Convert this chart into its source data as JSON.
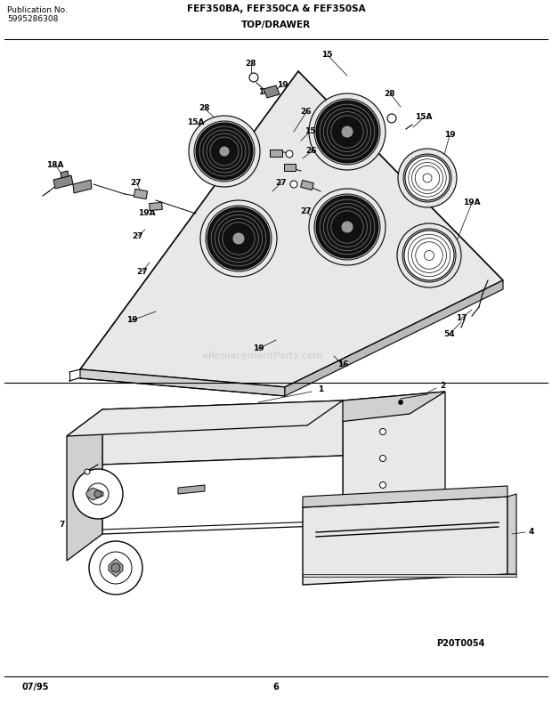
{
  "title": "FEF350BA, FEF350CA & FEF350SA",
  "subtitle": "TOP/DRAWER",
  "pub_no_label": "Publication No.",
  "pub_no": "5995286308",
  "date": "07/95",
  "page": "6",
  "watermark": "eReplacementParts.com",
  "diagram_ref": "P20T0054",
  "bg": "#ffffff",
  "lc": "#000000",
  "gray1": "#e8e8e8",
  "gray2": "#d0d0d0",
  "gray3": "#bbbbbb",
  "dark": "#111111",
  "mid": "#555555"
}
